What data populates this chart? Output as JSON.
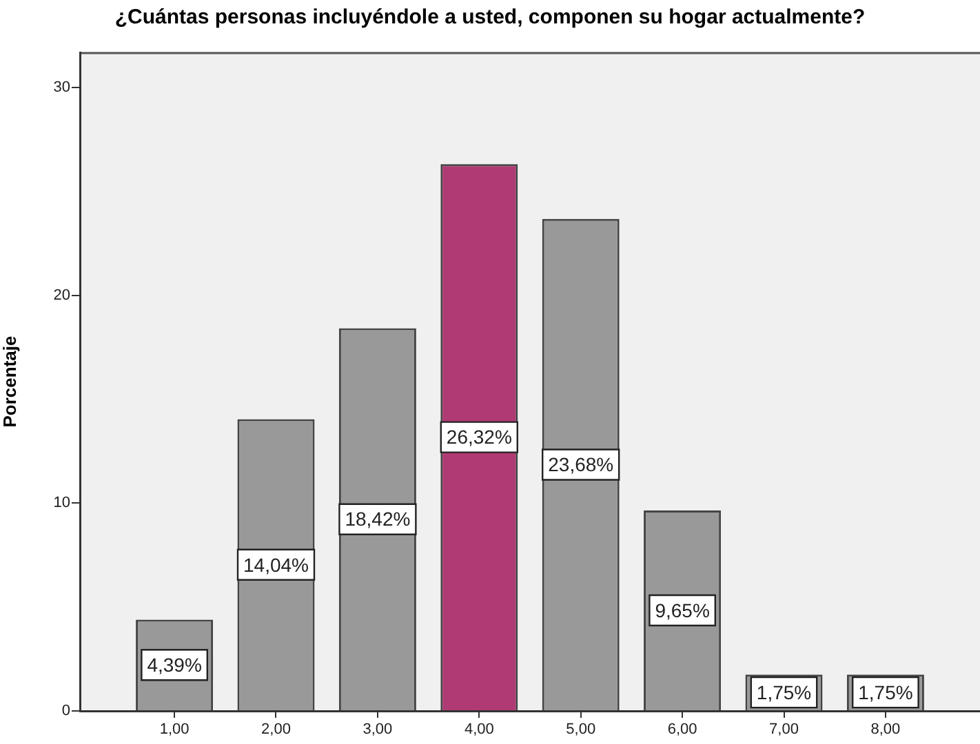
{
  "chart_data": {
    "type": "bar",
    "title": "¿Cuántas personas incluyéndole a usted, componen su hogar actualmente?",
    "ylabel": "Porcentaje",
    "categories": [
      "1,00",
      "2,00",
      "3,00",
      "4,00",
      "5,00",
      "6,00",
      "7,00",
      "8,00"
    ],
    "values": [
      4.39,
      14.04,
      18.42,
      26.32,
      23.68,
      9.65,
      1.75,
      1.75
    ],
    "colors": [
      "#999999",
      "#999999",
      "#999999",
      "#b03a74",
      "#999999",
      "#999999",
      "#999999",
      "#999999"
    ],
    "value_labels": [
      "4,39%",
      "14,04%",
      "18,42%",
      "26,32%",
      "23,68%",
      "9,65%",
      "1,75%",
      "1,75%"
    ],
    "ylim": [
      0,
      31.7
    ],
    "yticks": [
      0,
      10,
      20,
      30
    ],
    "grid": false,
    "legend": false
  }
}
